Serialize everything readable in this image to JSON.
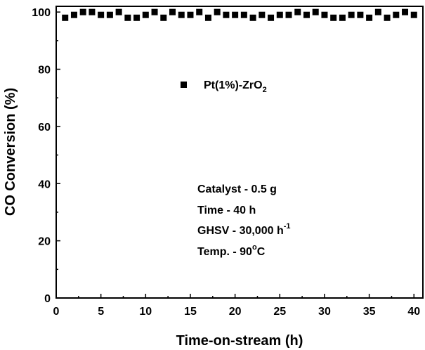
{
  "chart_data": {
    "type": "scatter",
    "xlabel": "Time-on-stream (h)",
    "ylabel": "CO Conversion (%)",
    "xlim": [
      0,
      41
    ],
    "ylim": [
      0,
      102
    ],
    "x_ticks": [
      0,
      5,
      10,
      15,
      20,
      25,
      30,
      35,
      40
    ],
    "y_ticks": [
      0,
      20,
      40,
      60,
      80,
      100
    ],
    "grid": false,
    "legend_position": "upper-center",
    "series": [
      {
        "name": "Pt(1%)-ZrO2",
        "name_parts": {
          "base": "Pt(1%)-ZrO",
          "subscript": "2"
        },
        "marker": "square",
        "color": "#000000",
        "x": [
          1,
          2,
          3,
          4,
          5,
          6,
          7,
          8,
          9,
          10,
          11,
          12,
          13,
          14,
          15,
          16,
          17,
          18,
          19,
          20,
          21,
          22,
          23,
          24,
          25,
          26,
          27,
          28,
          29,
          30,
          31,
          32,
          33,
          34,
          35,
          36,
          37,
          38,
          39,
          40
        ],
        "y": [
          98,
          99,
          100,
          100,
          99,
          99,
          100,
          98,
          98,
          99,
          100,
          98,
          100,
          99,
          99,
          100,
          98,
          100,
          99,
          99,
          99,
          98,
          99,
          98,
          99,
          99,
          100,
          99,
          100,
          99,
          98,
          98,
          99,
          99,
          98,
          100,
          98,
          99,
          100,
          99
        ]
      }
    ],
    "annotations": [
      {
        "base": "Catalyst - 0.5 g",
        "sup": "",
        "tail": ""
      },
      {
        "base": "Time - 40 h",
        "sup": "",
        "tail": ""
      },
      {
        "base": "GHSV - 30,000 h",
        "sup": "-1",
        "tail": ""
      },
      {
        "base": "Temp. - 90",
        "sup": "o",
        "tail": "C"
      }
    ]
  }
}
